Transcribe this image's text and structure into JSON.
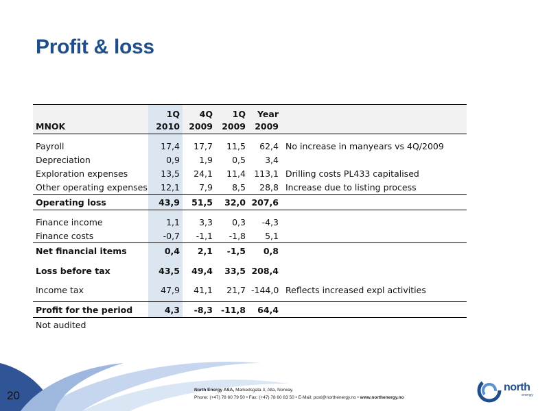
{
  "title": "Profit & loss",
  "table": {
    "header_row1": [
      "",
      "1Q",
      "4Q",
      "1Q",
      "Year",
      ""
    ],
    "header_row2": [
      "MNOK",
      "2010",
      "2009",
      "2009",
      "2009",
      ""
    ],
    "rows": [
      {
        "label": "Payroll",
        "values": [
          "17,4",
          "17,7",
          "11,5",
          "62,4"
        ],
        "comment": "No increase in manyears vs 4Q/2009"
      },
      {
        "label": "Depreciation",
        "values": [
          "0,9",
          "1,9",
          "0,5",
          "3,4"
        ],
        "comment": ""
      },
      {
        "label": "Exploration expenses",
        "values": [
          "13,5",
          "24,1",
          "11,4",
          "113,1"
        ],
        "comment": "Drilling costs PL433 capitalised"
      },
      {
        "label": "Other operating expenses",
        "values": [
          "12,1",
          "7,9",
          "8,5",
          "28,8"
        ],
        "comment": "Increase due to listing process"
      },
      {
        "label": "Operating loss",
        "values": [
          "43,9",
          "51,5",
          "32,0",
          "207,6"
        ],
        "comment": ""
      },
      {
        "label": "Finance income",
        "values": [
          "1,1",
          "3,3",
          "0,3",
          "-4,3"
        ],
        "comment": ""
      },
      {
        "label": "Finance costs",
        "values": [
          "-0,7",
          "-1,1",
          "-1,8",
          "5,1"
        ],
        "comment": ""
      },
      {
        "label": "Net financial items",
        "values": [
          "0,4",
          "2,1",
          "-1,5",
          "0,8"
        ],
        "comment": ""
      },
      {
        "label": "Loss before tax",
        "values": [
          "43,5",
          "49,4",
          "33,5",
          "208,4"
        ],
        "comment": ""
      },
      {
        "label": "Income tax",
        "values": [
          "47,9",
          "41,1",
          "21,7",
          "-144,0"
        ],
        "comment": "Reflects increased expl activities"
      },
      {
        "label": "Profit for the period",
        "values": [
          "4,3",
          "-8,3",
          "-11,8",
          "64,4"
        ],
        "comment": ""
      }
    ],
    "note": "Not audited"
  },
  "footer": {
    "company": "North Energy ASA,",
    "address": "Markedsgata 3, Alta, Norway.",
    "contact": "Phone: (+47) 78 60 79 50  • Fax: (+47) 78 60 83 50  • E-Mail: post@northenergy.no  • ",
    "website": "www.northenergy.no"
  },
  "page_number": "20",
  "logo": {
    "name": "north",
    "sub": "energy"
  },
  "colors": {
    "title": "#1f4e89",
    "highlight_column": "#dce6f1",
    "header_grey": "#f2f2f2"
  }
}
